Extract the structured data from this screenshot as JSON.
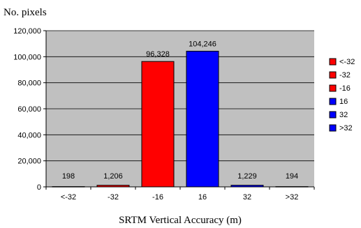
{
  "chart_data": {
    "type": "bar",
    "title": "",
    "ylabel": "No. pixels",
    "xlabel": "SRTM Vertical Accuracy (m)",
    "categories": [
      "<-32",
      "-32",
      "-16",
      "16",
      "32",
      ">32"
    ],
    "values": [
      198,
      1206,
      96328,
      104246,
      1229,
      194
    ],
    "value_labels": [
      "198",
      "1,206",
      "96,328",
      "104,246",
      "1,229",
      "194"
    ],
    "ylim": [
      0,
      120000
    ],
    "yticks": [
      0,
      20000,
      40000,
      60000,
      80000,
      100000,
      120000
    ],
    "ytick_labels": [
      "0",
      "20,000",
      "40,000",
      "60,000",
      "80,000",
      "100,000",
      "120,000"
    ],
    "grid": true,
    "legend_position": "right",
    "legend": [
      {
        "label": "<-32",
        "color": "#ff0000"
      },
      {
        "label": "-32",
        "color": "#ff0000"
      },
      {
        "label": "-16",
        "color": "#ff0000"
      },
      {
        "label": "16",
        "color": "#0000ff"
      },
      {
        "label": "32",
        "color": "#0000ff"
      },
      {
        "label": ">32",
        "color": "#0000ff"
      }
    ],
    "bar_colors": [
      "#ff0000",
      "#ff0000",
      "#ff0000",
      "#0000ff",
      "#0000ff",
      "#0000ff"
    ],
    "plot_background": "#c0c0c0"
  }
}
